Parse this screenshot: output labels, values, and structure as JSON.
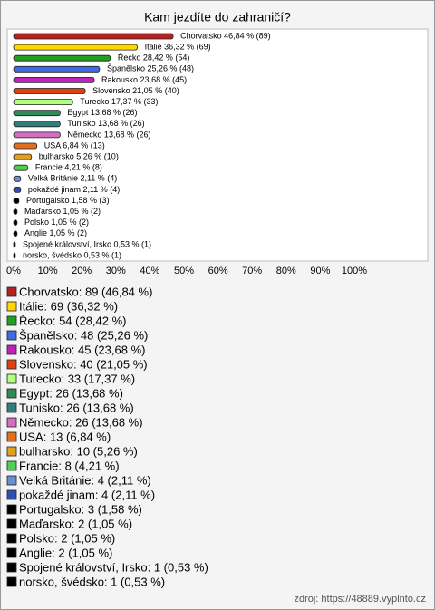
{
  "chart_data": {
    "type": "bar",
    "orientation": "horizontal",
    "title": "Kam jezdíte do zahraničí?",
    "values": [
      46.84,
      36.32,
      28.42,
      25.26,
      23.68,
      21.05,
      17.37,
      13.68,
      13.68,
      13.68,
      6.84,
      5.26,
      4.21,
      2.11,
      2.11,
      1.58,
      1.05,
      1.05,
      1.05,
      0.53,
      0.53
    ],
    "value_labels": [
      "Chorvatsko 46,84 % (89)",
      "Itálie 36,32 % (69)",
      "Řecko 28,42 % (54)",
      "Španělsko 25,26 % (48)",
      "Rakousko 23,68 % (45)",
      "Slovensko 21,05 % (40)",
      "Turecko 17,37 % (33)",
      "Egypt 13,68 % (26)",
      "Tunisko 13,68 % (26)",
      "Německo 13,68 % (26)",
      "USA 6,84 % (13)",
      "bulharsko 5,26 % (10)",
      "Francie 4,21 % (8)",
      "Velká Británie 2,11 % (4)",
      "pokaždé jinam 2,11 % (4)",
      "Portugalsko 1,58 % (3)",
      "Maďarsko 1,05 % (2)",
      "Polsko 1,05 % (2)",
      "Anglie 1,05 % (2)",
      "Spojené království, Irsko 0,53 % (1)",
      "norsko, švédsko 0,53 % (1)"
    ],
    "colors": [
      "#b22222",
      "#ffd700",
      "#22a022",
      "#4169e1",
      "#c020c0",
      "#e04010",
      "#b0ff80",
      "#2e8b57",
      "#2f7f7f",
      "#d070c0",
      "#e07020",
      "#e0a020",
      "#50d050",
      "#6a8fd0",
      "#3050b0",
      "#000000",
      "#000000",
      "#000000",
      "#000000",
      "#000000",
      "#000000"
    ],
    "legend_labels": [
      "Chorvatsko: 89 (46,84 %)",
      "Itálie: 69 (36,32 %)",
      "Řecko: 54 (28,42 %)",
      "Španělsko: 48 (25,26 %)",
      "Rakousko: 45 (23,68 %)",
      "Slovensko: 40 (21,05 %)",
      "Turecko: 33 (17,37 %)",
      "Egypt: 26 (13,68 %)",
      "Tunisko: 26 (13,68 %)",
      "Německo: 26 (13,68 %)",
      "USA: 13 (6,84 %)",
      "bulharsko: 10 (5,26 %)",
      "Francie: 8 (4,21 %)",
      "Velká Británie: 4 (2,11 %)",
      "pokaždé jinam: 4 (2,11 %)",
      "Portugalsko: 3 (1,58 %)",
      "Maďarsko: 2 (1,05 %)",
      "Polsko: 2 (1,05 %)",
      "Anglie: 2 (1,05 %)",
      "Spojené království, Irsko: 1 (0,53 %)",
      "norsko, švédsko: 1 (0,53 %)"
    ],
    "xlim": [
      0,
      100
    ],
    "xticks": [
      {
        "value": 0,
        "label": "0%"
      },
      {
        "value": 10,
        "label": "10%"
      },
      {
        "value": 20,
        "label": "20%"
      },
      {
        "value": 30,
        "label": "30%"
      },
      {
        "value": 40,
        "label": "40%"
      },
      {
        "value": 50,
        "label": "50%"
      },
      {
        "value": 60,
        "label": "60%"
      },
      {
        "value": 70,
        "label": "70%"
      },
      {
        "value": 80,
        "label": "80%"
      },
      {
        "value": 90,
        "label": "90%"
      },
      {
        "value": 100,
        "label": "100%"
      }
    ],
    "grid": false,
    "source": "zdroj: https://48889.vyplnto.cz"
  }
}
